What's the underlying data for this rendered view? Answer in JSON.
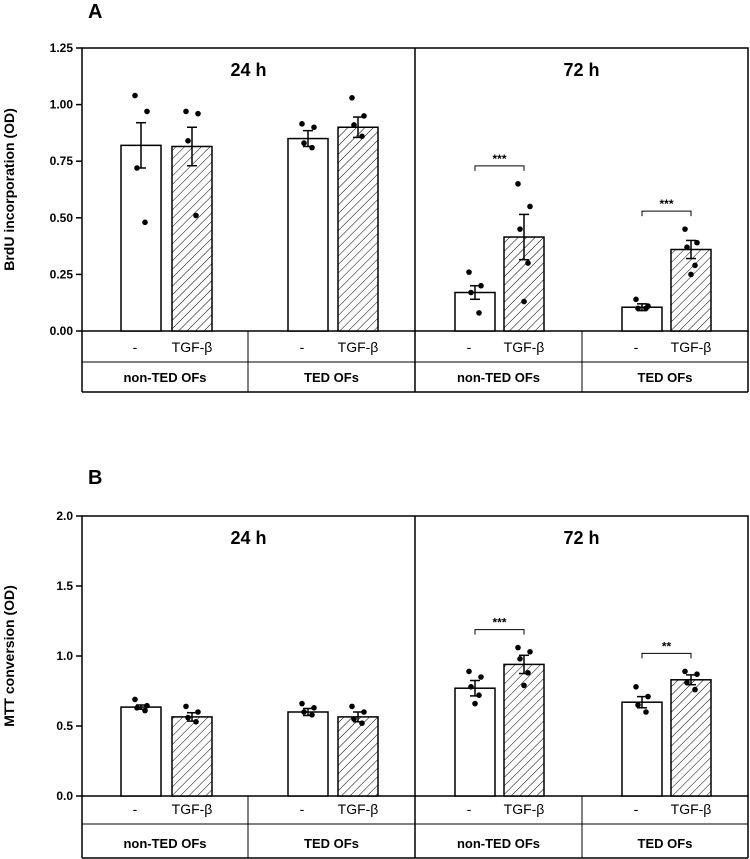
{
  "chart_data": [
    {
      "panel": "A",
      "type": "bar",
      "ylabel": "BrdU incorporation (OD)",
      "ylim": [
        0,
        1.25
      ],
      "yticks": [
        "0.00",
        "0.25",
        "0.50",
        "0.75",
        "1.00",
        "1.25"
      ],
      "ytick_values": [
        0,
        0.25,
        0.5,
        0.75,
        1.0,
        1.25
      ],
      "timepoints": [
        "24 h",
        "72 h"
      ],
      "groups": [
        {
          "time": "24 h",
          "name": "non-TED OFs",
          "bars": [
            {
              "label": "-",
              "value": 0.82,
              "sem": 0.1,
              "pattern": "open",
              "points": [
                1.04,
                0.97,
                0.72,
                0.48
              ]
            },
            {
              "label": "TGF-β",
              "value": 0.815,
              "sem": 0.085,
              "pattern": "hatched",
              "points": [
                0.97,
                0.96,
                0.84,
                0.51
              ]
            }
          ]
        },
        {
          "time": "24 h",
          "name": "TED OFs",
          "bars": [
            {
              "label": "-",
              "value": 0.85,
              "sem": 0.035,
              "pattern": "open",
              "points": [
                0.915,
                0.9,
                0.83,
                0.81
              ]
            },
            {
              "label": "TGF-β",
              "value": 0.9,
              "sem": 0.045,
              "pattern": "hatched",
              "points": [
                1.03,
                0.95,
                0.91,
                0.86
              ]
            }
          ],
          "significance": ""
        },
        {
          "time": "72 h",
          "name": "non-TED OFs",
          "bars": [
            {
              "label": "-",
              "value": 0.17,
              "sem": 0.03,
              "pattern": "open",
              "points": [
                0.26,
                0.2,
                0.17,
                0.08
              ]
            },
            {
              "label": "TGF-β",
              "value": 0.415,
              "sem": 0.1,
              "pattern": "hatched",
              "points": [
                0.65,
                0.55,
                0.45,
                0.3,
                0.13
              ]
            }
          ],
          "significance": "***"
        },
        {
          "time": "72 h",
          "name": "TED OFs",
          "bars": [
            {
              "label": "-",
              "value": 0.105,
              "sem": 0.015,
              "pattern": "open",
              "points": [
                0.14,
                0.11,
                0.1,
                0.1
              ]
            },
            {
              "label": "TGF-β",
              "value": 0.36,
              "sem": 0.04,
              "pattern": "hatched",
              "points": [
                0.45,
                0.39,
                0.37,
                0.29,
                0.25
              ]
            }
          ],
          "significance": "***"
        }
      ]
    },
    {
      "panel": "B",
      "type": "bar",
      "ylabel": "MTT conversion (OD)",
      "ylim": [
        0,
        2.0
      ],
      "yticks": [
        "0.0",
        "0.5",
        "1.0",
        "1.5",
        "2.0"
      ],
      "ytick_values": [
        0,
        0.5,
        1.0,
        1.5,
        2.0
      ],
      "timepoints": [
        "24 h",
        "72 h"
      ],
      "groups": [
        {
          "time": "24 h",
          "name": "non-TED OFs",
          "bars": [
            {
              "label": "-",
              "value": 0.635,
              "sem": 0.015,
              "pattern": "open",
              "points": [
                0.69,
                0.645,
                0.63,
                0.61
              ]
            },
            {
              "label": "TGF-β",
              "value": 0.565,
              "sem": 0.03,
              "pattern": "hatched",
              "points": [
                0.64,
                0.6,
                0.56,
                0.53
              ]
            }
          ]
        },
        {
          "time": "24 h",
          "name": "TED OFs",
          "bars": [
            {
              "label": "-",
              "value": 0.6,
              "sem": 0.025,
              "pattern": "open",
              "points": [
                0.66,
                0.63,
                0.6,
                0.58
              ]
            },
            {
              "label": "TGF-β",
              "value": 0.565,
              "sem": 0.035,
              "pattern": "hatched",
              "points": [
                0.64,
                0.6,
                0.55,
                0.52
              ]
            }
          ]
        },
        {
          "time": "72 h",
          "name": "non-TED OFs",
          "bars": [
            {
              "label": "-",
              "value": 0.77,
              "sem": 0.055,
              "pattern": "open",
              "points": [
                0.89,
                0.85,
                0.78,
                0.72,
                0.66
              ]
            },
            {
              "label": "TGF-β",
              "value": 0.94,
              "sem": 0.065,
              "pattern": "hatched",
              "points": [
                1.06,
                1.03,
                0.98,
                0.88,
                0.79
              ]
            }
          ],
          "significance": "***"
        },
        {
          "time": "72 h",
          "name": "TED OFs",
          "bars": [
            {
              "label": "-",
              "value": 0.67,
              "sem": 0.04,
              "pattern": "open",
              "points": [
                0.78,
                0.71,
                0.65,
                0.6
              ]
            },
            {
              "label": "TGF-β",
              "value": 0.83,
              "sem": 0.035,
              "pattern": "hatched",
              "points": [
                0.89,
                0.87,
                0.81,
                0.76
              ]
            }
          ],
          "significance": "**"
        }
      ]
    }
  ]
}
